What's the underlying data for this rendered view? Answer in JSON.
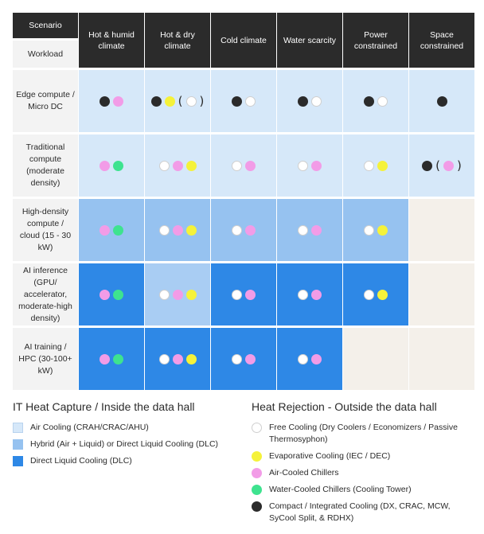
{
  "header": {
    "scenario_label": "Scenario",
    "workload_label": "Workload",
    "columns": [
      "Hot & humid climate",
      "Hot & dry climate",
      "Cold climate",
      "Water scarcity",
      "Power constrained",
      "Space constrained"
    ]
  },
  "rows": [
    {
      "label": "Edge compute / Micro DC",
      "cells": [
        {
          "tier": "air",
          "dots": [
            "black",
            "pink"
          ]
        },
        {
          "tier": "air",
          "dots": [
            "black",
            "yellow",
            "(",
            "white",
            ")"
          ]
        },
        {
          "tier": "air",
          "dots": [
            "black",
            "white"
          ]
        },
        {
          "tier": "air",
          "dots": [
            "black",
            "white"
          ]
        },
        {
          "tier": "air",
          "dots": [
            "black",
            "white"
          ]
        },
        {
          "tier": "air",
          "dots": [
            "black"
          ]
        }
      ]
    },
    {
      "label": "Traditional compute (moderate density)",
      "cells": [
        {
          "tier": "air",
          "dots": [
            "pink",
            "green"
          ]
        },
        {
          "tier": "air",
          "dots": [
            "white",
            "pink",
            "yellow"
          ]
        },
        {
          "tier": "air",
          "dots": [
            "white",
            "pink"
          ]
        },
        {
          "tier": "air",
          "dots": [
            "white",
            "pink"
          ]
        },
        {
          "tier": "air",
          "dots": [
            "white",
            "yellow"
          ]
        },
        {
          "tier": "air",
          "dots": [
            "black",
            "(",
            "pink",
            ")"
          ]
        }
      ]
    },
    {
      "label": "High-density compute / cloud (15 - 30 kW)",
      "cells": [
        {
          "tier": "hybrid",
          "dots": [
            "pink",
            "green"
          ]
        },
        {
          "tier": "hybrid",
          "dots": [
            "white",
            "pink",
            "yellow"
          ]
        },
        {
          "tier": "hybrid",
          "dots": [
            "white",
            "pink"
          ]
        },
        {
          "tier": "hybrid",
          "dots": [
            "white",
            "pink"
          ]
        },
        {
          "tier": "hybrid",
          "dots": [
            "white",
            "yellow"
          ]
        },
        {
          "tier": "none",
          "dots": []
        }
      ]
    },
    {
      "label": "AI inference (GPU/ accelerator, moderate-high density)",
      "cells": [
        {
          "tier": "dlc",
          "dots": [
            "pink",
            "green"
          ]
        },
        {
          "tier": "hybrid-light",
          "dots": [
            "white",
            "pink",
            "yellow"
          ]
        },
        {
          "tier": "dlc",
          "dots": [
            "white",
            "pink"
          ]
        },
        {
          "tier": "dlc",
          "dots": [
            "white",
            "pink"
          ]
        },
        {
          "tier": "dlc",
          "dots": [
            "white",
            "yellow"
          ]
        },
        {
          "tier": "none",
          "dots": []
        }
      ]
    },
    {
      "label": "AI training / HPC (30-100+ kW)",
      "cells": [
        {
          "tier": "dlc",
          "dots": [
            "pink",
            "green"
          ]
        },
        {
          "tier": "dlc",
          "dots": [
            "white",
            "pink",
            "yellow"
          ]
        },
        {
          "tier": "dlc",
          "dots": [
            "white",
            "pink"
          ]
        },
        {
          "tier": "dlc",
          "dots": [
            "white",
            "pink"
          ]
        },
        {
          "tier": "none",
          "dots": []
        },
        {
          "tier": "none",
          "dots": []
        }
      ]
    }
  ],
  "legend_left": {
    "title": "IT Heat Capture / Inside the data hall",
    "items": [
      {
        "key": "air",
        "label": "Air Cooling (CRAH/CRAC/AHU)"
      },
      {
        "key": "hybrid",
        "label": "Hybrid (Air + Liquid) or Direct Liquid Cooling (DLC)"
      },
      {
        "key": "dlc",
        "label": "Direct Liquid Cooling (DLC)"
      }
    ]
  },
  "legend_right": {
    "title": "Heat Rejection - Outside the data hall",
    "items": [
      {
        "key": "white",
        "label": "Free Cooling (Dry Coolers / Economizers / Passive Thermosyphon)"
      },
      {
        "key": "yellow",
        "label": "Evaporative Cooling (IEC / DEC)"
      },
      {
        "key": "pink",
        "label": "Air-Cooled Chillers"
      },
      {
        "key": "green",
        "label": "Water-Cooled Chillers (Cooling Tower)"
      },
      {
        "key": "black",
        "label": "Compact / Integrated Cooling (DX, CRAC, MCW, SyCool Split, & RDHX)"
      }
    ]
  },
  "colors": {
    "air": "#d6e8f9",
    "hybrid": "#96c2f0",
    "hybrid-light": "#a9cdf3",
    "dlc": "#2e88e6",
    "none": "#f4f0ea",
    "white": "#ffffff",
    "yellow": "#f5f23a",
    "pink": "#f29ce7",
    "green": "#3ee38f",
    "black": "#2b2b2b"
  }
}
